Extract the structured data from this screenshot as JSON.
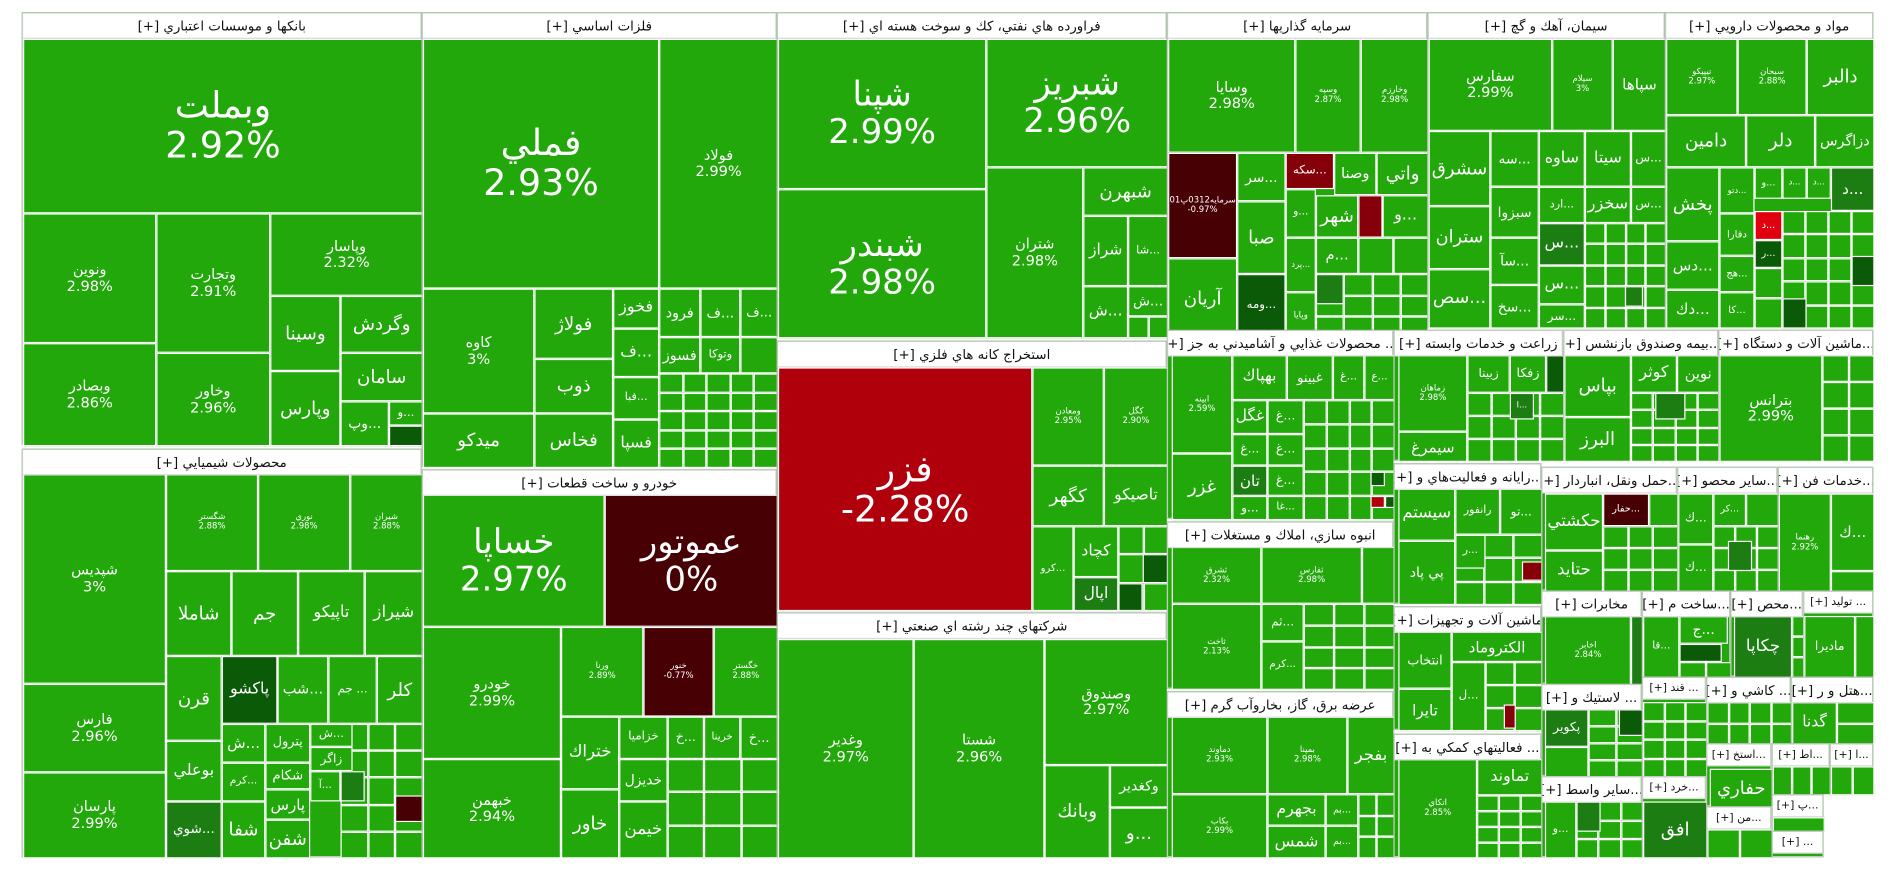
{
  "colors": {
    "up": "#22a80b",
    "mid": "#1b7d12",
    "dark": "#0b5a08",
    "down": "#b0000c",
    "bright-down": "#e0000f",
    "loss": "#850008",
    "deep-down": "#470003"
  },
  "sectors": [
    {
      "title": "بانکها و موسسات اعتباري [+]",
      "tiles": [
        {
          "s": "وبملت",
          "c": "2.92%"
        },
        {
          "s": "ونوين",
          "c": "2.98%"
        },
        {
          "s": "وبصادر",
          "c": "2.86%"
        },
        {
          "s": "وتجارت",
          "c": "2.91%"
        },
        {
          "s": "وخاور",
          "c": "2.96%"
        },
        {
          "s": "وپاسار",
          "c": "2.32%"
        },
        {
          "s": "وسينا"
        },
        {
          "s": "وپارس"
        },
        {
          "s": "وگردش"
        },
        {
          "s": "سامان"
        },
        {
          "s": "...وپ"
        },
        {
          "s": "...و"
        },
        {
          "s": "",
          "tone": "dark"
        }
      ]
    },
    {
      "title": "محصولات شيميايي [+]",
      "tiles": [
        {
          "s": "شپديس",
          "c": "3%"
        },
        {
          "s": "فارس",
          "c": "2.96%"
        },
        {
          "s": "پارسان",
          "c": "2.99%"
        },
        {
          "s": "شگستر",
          "c": "2.88%"
        },
        {
          "s": "نوري",
          "c": "2.98%"
        },
        {
          "s": "شيران",
          "c": "2.88%"
        },
        {
          "s": "شاملا"
        },
        {
          "s": "جم"
        },
        {
          "s": "تاپيكو"
        },
        {
          "s": "شيراز"
        },
        {
          "s": "قرن"
        },
        {
          "s": "پاكشو",
          "tone": "dark"
        },
        {
          "s": "...شب"
        },
        {
          "s": "... جم"
        },
        {
          "s": "كلر"
        },
        {
          "s": "بوعلي"
        },
        {
          "s": "...شوي",
          "tone": "mid"
        },
        {
          "s": "...ش"
        },
        {
          "s": "پترول"
        },
        {
          "s": "...ش"
        },
        {
          "s": "زاگر"
        },
        {
          "s": "شكام"
        },
        {
          "s": "...كرم"
        },
        {
          "s": "پارس"
        },
        {
          "s": "...آ"
        },
        {
          "s": "شفا"
        },
        {
          "s": "شفن"
        }
      ]
    },
    {
      "title": "فلزات اساسي [+]",
      "tiles": [
        {
          "s": "فملي",
          "c": "2.93%"
        },
        {
          "s": "فولاد",
          "c": "2.99%"
        },
        {
          "s": "كاوه",
          "c": "3%"
        },
        {
          "s": "ميدكو"
        },
        {
          "s": "فولاژ"
        },
        {
          "s": "ذوب"
        },
        {
          "s": "فخاس"
        },
        {
          "s": "فخوز"
        },
        {
          "s": "...ف"
        },
        {
          "s": "...فبا"
        },
        {
          "s": "فسپا"
        },
        {
          "s": "فرود"
        },
        {
          "s": "...ف"
        },
        {
          "s": "...ف"
        },
        {
          "s": "فسوز"
        },
        {
          "s": "وتوكا"
        }
      ]
    },
    {
      "title": "خودرو و ساخت قطعات [+]",
      "tiles": [
        {
          "s": "خساپا",
          "c": "2.97%"
        },
        {
          "s": "عموتور",
          "c": "0%",
          "tone": "deep-down"
        },
        {
          "s": "خودرو",
          "c": "2.99%"
        },
        {
          "s": "خبهمن",
          "c": "2.94%"
        },
        {
          "s": "ورنا",
          "c": "2.89%"
        },
        {
          "s": "خنور",
          "c": "-0.77%",
          "tone": "deep-down"
        },
        {
          "s": "خگستر",
          "c": "2.88%"
        },
        {
          "s": "ختراك"
        },
        {
          "s": "خاور"
        },
        {
          "s": "خزاميا"
        },
        {
          "s": "خديزل"
        },
        {
          "s": "خيمن"
        },
        {
          "s": "...خ"
        },
        {
          "s": "خرينا"
        },
        {
          "s": "...خ"
        }
      ]
    },
    {
      "title": "فراورده هاي نفتي، كك و سوخت هسته اي [+]",
      "tiles": [
        {
          "s": "شپنا",
          "c": "2.99%"
        },
        {
          "s": "شبندر",
          "c": "2.98%"
        },
        {
          "s": "شبريز",
          "c": "2.96%"
        },
        {
          "s": "شتران",
          "c": "2.98%"
        },
        {
          "s": "شبهرن"
        },
        {
          "s": "شراز"
        },
        {
          "s": "...شا"
        },
        {
          "s": "...ش"
        },
        {
          "s": "...ش"
        }
      ]
    },
    {
      "title": "استخراج كانه هاي فلزي [+]",
      "tiles": [
        {
          "s": "فزر",
          "c": "-2.28%",
          "tone": "down"
        },
        {
          "s": "ومعادن",
          "c": "2.95%"
        },
        {
          "s": "كگل",
          "c": "2.90%"
        },
        {
          "s": "كگهر"
        },
        {
          "s": "تاصيكو"
        },
        {
          "s": "...كرو"
        },
        {
          "s": "كچاد"
        },
        {
          "s": "اپال",
          "tone": "mid"
        }
      ]
    },
    {
      "title": "شركتهاي چند رشته اي صنعتي [+]",
      "tiles": [
        {
          "s": "وغدير",
          "c": "2.97%"
        },
        {
          "s": "شستا",
          "c": "2.96%"
        },
        {
          "s": "وصندوق",
          "c": "2.97%"
        },
        {
          "s": "وبانك"
        },
        {
          "s": "وكغدير"
        },
        {
          "s": "...و"
        }
      ]
    },
    {
      "title": "سرمايه گذاريها [+]",
      "tiles": [
        {
          "s": "وسايا",
          "c": "2.98%"
        },
        {
          "s": "وسپه",
          "c": "2.87%"
        },
        {
          "s": "وخارزم",
          "c": "2.98%"
        },
        {
          "s": "سرمايه0312پ01",
          "c": "-0.97%",
          "tone": "deep-down"
        },
        {
          "s": "آريان"
        },
        {
          "s": "...سر"
        },
        {
          "s": "صبا"
        },
        {
          "s": "...ومه",
          "tone": "dark"
        },
        {
          "s": "...سكه",
          "tone": "loss"
        },
        {
          "s": "وصنا"
        },
        {
          "s": "واتي"
        },
        {
          "s": "...و"
        },
        {
          "s": "شهر"
        },
        {
          "s": "",
          "tone": "loss"
        },
        {
          "s": "...و"
        },
        {
          "s": "...پرد"
        },
        {
          "s": "...م"
        },
        {
          "s": "وپايا"
        }
      ]
    },
    {
      "title": "سيمان، آهك و گچ [+]",
      "tiles": [
        {
          "s": "سفارس",
          "c": "2.99%"
        },
        {
          "s": "سيلام",
          "c": "3%"
        },
        {
          "s": "سپاها"
        },
        {
          "s": "سشرق"
        },
        {
          "s": "ستران"
        },
        {
          "s": "...سص"
        },
        {
          "s": "...سه"
        },
        {
          "s": "ساوه"
        },
        {
          "s": "سيتا"
        },
        {
          "s": "...س"
        },
        {
          "s": "سبزوا"
        },
        {
          "s": "...ارد"
        },
        {
          "s": "سخزر"
        },
        {
          "s": "...س"
        },
        {
          "s": "...سآ"
        },
        {
          "s": "...سخ"
        },
        {
          "s": "...س",
          "tone": "mid"
        },
        {
          "s": "...س"
        },
        {
          "s": "...سر"
        }
      ]
    },
    {
      "title": "مواد و محصولات دارويي [+]",
      "tiles": [
        {
          "s": "تيپيكو",
          "c": "2.97%"
        },
        {
          "s": "سبحان",
          "c": "2.88%"
        },
        {
          "s": "دالبر"
        },
        {
          "s": "دامين"
        },
        {
          "s": "دلر"
        },
        {
          "s": "دزاگرس"
        },
        {
          "s": "پخش"
        },
        {
          "s": "...دتو"
        },
        {
          "s": "...و"
        },
        {
          "s": "...د"
        },
        {
          "s": "...د"
        },
        {
          "s": "...د",
          "tone": "mid"
        },
        {
          "s": "...د",
          "tone": "bright-down"
        },
        {
          "s": "...ر",
          "tone": "dark"
        },
        {
          "s": "دفارا"
        },
        {
          "s": "...دس"
        },
        {
          "s": "...هج"
        },
        {
          "s": "...دك"
        },
        {
          "s": "...كا"
        }
      ]
    },
    {
      "title": "... محصولات غذايي و آشاميدني به جز [+]",
      "tiles": [
        {
          "s": "ابينه",
          "c": "2.59%"
        },
        {
          "s": "غزر"
        },
        {
          "s": "بهپاك"
        },
        {
          "s": "غبينو"
        },
        {
          "s": "...غ"
        },
        {
          "s": "...ع"
        },
        {
          "s": "غگل"
        },
        {
          "s": "...غ"
        },
        {
          "s": "...غ"
        },
        {
          "s": "...غ"
        },
        {
          "s": "تان",
          "tone": "mid"
        },
        {
          "s": "...غ"
        },
        {
          "s": "...و"
        },
        {
          "s": "...غا"
        }
      ]
    },
    {
      "title": "انبوه سازي، املاك و مستغلات [+]",
      "tiles": [
        {
          "s": "ثشرق",
          "c": "2.32%"
        },
        {
          "s": "ثاخت",
          "c": "2.13%"
        },
        {
          "s": "ثفارس",
          "c": "2.98%"
        },
        {
          "s": "...ثم"
        },
        {
          "s": "...كرم"
        }
      ]
    },
    {
      "title": "عرضه برق، گاز، بخاروآب گرم [+]",
      "tiles": [
        {
          "s": "دماوند",
          "c": "2.93%"
        },
        {
          "s": "بمپنا",
          "c": "2.98%"
        },
        {
          "s": "بفجر"
        },
        {
          "s": "بكاب",
          "c": "2.99%"
        },
        {
          "s": "بجهرم"
        },
        {
          "s": "شمس"
        },
        {
          "s": "...بم"
        },
        {
          "s": "...بم"
        }
      ]
    },
    {
      "title": "زراعت و خدمات وابسته [+]",
      "tiles": [
        {
          "s": "زماهان",
          "c": "2.98%"
        },
        {
          "s": "سيمرغ"
        },
        {
          "s": "زبينا"
        },
        {
          "s": "زفكا"
        },
        {
          "s": "",
          "tone": "dark"
        },
        {
          "s": "...ا",
          "tone": "mid"
        }
      ]
    },
    {
      "title": "...رايانه و فعاليت‌هاي و [+]",
      "tiles": [
        {
          "s": "سيستم"
        },
        {
          "s": "پي پاد"
        },
        {
          "s": "رانفور"
        },
        {
          "s": "...تو"
        },
        {
          "s": "...ر"
        },
        {
          "s": "",
          "tone": "loss"
        }
      ]
    },
    {
      "title": "ماشين آلات و تجهيزات [+]",
      "tiles": [
        {
          "s": "انتخاب"
        },
        {
          "s": "تايرا"
        },
        {
          "s": "الكتروماد"
        },
        {
          "s": "...ل"
        },
        {
          "s": "",
          "tone": "loss"
        }
      ]
    },
    {
      "title": "... فعاليتهاي كمكي به [+]",
      "tiles": [
        {
          "s": "اتكاي",
          "c": "2.85%"
        },
        {
          "s": "تماوند"
        }
      ]
    },
    {
      "title": "...بيمه وصندوق بازنشس [+]",
      "tiles": [
        {
          "s": "بپاس"
        },
        {
          "s": "البرز"
        },
        {
          "s": "كوثر"
        },
        {
          "s": "نوين"
        },
        {
          "s": "",
          "tone": "mid"
        }
      ]
    },
    {
      "title": "...ماشين آلات و دستگاه [+]",
      "tiles": [
        {
          "s": "بترانس",
          "c": "2.99%"
        }
      ]
    },
    {
      "title": "...حمل ونقل، انباردار [+]",
      "tiles": [
        {
          "s": "حكشتي"
        },
        {
          "s": "حتايد"
        },
        {
          "s": "...حفار",
          "tone": "deep-down"
        }
      ]
    },
    {
      "title": "...ساير محصو [+]",
      "tiles": [
        {
          "s": "...ك"
        },
        {
          "s": "...ك"
        },
        {
          "s": "...كر"
        },
        {
          "s": "",
          "tone": "mid"
        }
      ]
    },
    {
      "title": "...خدمات فن [+]",
      "tiles": [
        {
          "s": "رهنما",
          "c": "2.92%"
        },
        {
          "s": "...ك"
        }
      ]
    },
    {
      "title": "مخابرات [+]",
      "tiles": [
        {
          "s": "اخابر",
          "c": "2.84%"
        },
        {
          "s": "",
          "tone": "mid"
        }
      ]
    },
    {
      "title": "...ساخت م [+]",
      "tiles": [
        {
          "s": "...قا"
        },
        {
          "s": "...ج"
        },
        {
          "s": "",
          "tone": "dark"
        }
      ]
    },
    {
      "title": "...محص [+]",
      "tiles": [
        {
          "s": "چكاپا",
          "tone": "mid"
        }
      ]
    },
    {
      "title": "... توليد [+]",
      "tiles": [
        {
          "s": "ماديرا"
        }
      ]
    },
    {
      "title": "... لاستيك و [+]",
      "tiles": [
        {
          "s": "پكوير",
          "tone": "mid"
        },
        {
          "s": "",
          "tone": "dark"
        }
      ]
    },
    {
      "title": "... قند [+]",
      "tiles": []
    },
    {
      "title": "... كاشي و [+]",
      "tiles": []
    },
    {
      "title": "...هتل و ر [+]",
      "tiles": [
        {
          "s": "گدنا"
        }
      ]
    },
    {
      "title": "...ساير واسط [+]",
      "tiles": [
        {
          "s": "...و"
        },
        {
          "s": "",
          "tone": "mid"
        }
      ]
    },
    {
      "title": "...خرد [+]",
      "tiles": [
        {
          "s": "افق",
          "tone": "mid"
        }
      ]
    },
    {
      "title": "...استخ [+]",
      "tiles": [
        {
          "s": "حفاري"
        }
      ]
    },
    {
      "title": "...من [+]",
      "tiles": []
    },
    {
      "title": "...اط [+]",
      "tiles": []
    },
    {
      "title": "...ا [+]",
      "tiles": []
    },
    {
      "title": "...پ [+]",
      "tiles": []
    },
    {
      "title": "... [+]",
      "tiles": []
    }
  ]
}
